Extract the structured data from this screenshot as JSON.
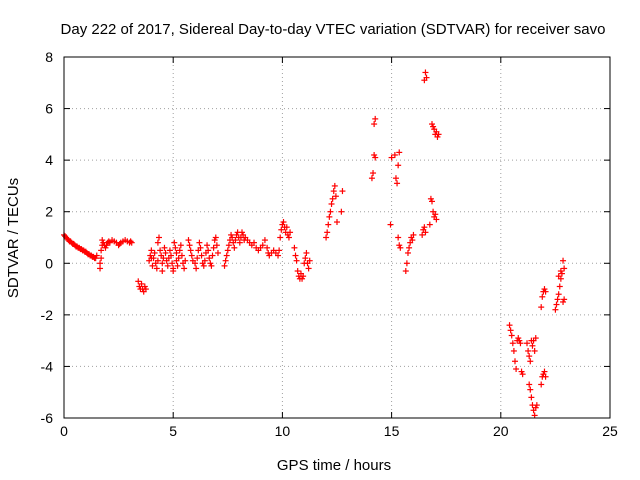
{
  "chart_data": {
    "type": "scatter",
    "title": "Day 222 of 2017, Sidereal Day-to-day VTEC variation (SDTVAR) for receiver savo",
    "xlabel": "GPS time / hours",
    "ylabel": "SDTVAR / TECUs",
    "xlim": [
      0,
      25
    ],
    "ylim": [
      -6,
      8
    ],
    "xticks": [
      0,
      5,
      10,
      15,
      20,
      25
    ],
    "yticks": [
      -6,
      -4,
      -2,
      0,
      2,
      4,
      6,
      8
    ],
    "xtick_labels": [
      "0",
      "5",
      "10",
      "15",
      "20",
      "25"
    ],
    "ytick_labels": [
      "-6",
      "-4",
      "-2",
      "0",
      "2",
      "4",
      "6",
      "8"
    ],
    "grid": true,
    "marker": "plus",
    "series": [
      {
        "name": "savo",
        "color": "#ff0000",
        "points": [
          [
            0.0,
            1.1
          ],
          [
            0.05,
            1.05
          ],
          [
            0.1,
            1.0
          ],
          [
            0.15,
            0.95
          ],
          [
            0.2,
            0.9
          ],
          [
            0.25,
            0.85
          ],
          [
            0.3,
            0.85
          ],
          [
            0.35,
            0.8
          ],
          [
            0.4,
            0.75
          ],
          [
            0.45,
            0.75
          ],
          [
            0.5,
            0.7
          ],
          [
            0.55,
            0.65
          ],
          [
            0.6,
            0.65
          ],
          [
            0.65,
            0.6
          ],
          [
            0.7,
            0.6
          ],
          [
            0.75,
            0.55
          ],
          [
            0.8,
            0.55
          ],
          [
            0.85,
            0.5
          ],
          [
            0.9,
            0.5
          ],
          [
            0.95,
            0.45
          ],
          [
            1.0,
            0.45
          ],
          [
            1.05,
            0.4
          ],
          [
            1.1,
            0.35
          ],
          [
            1.15,
            0.35
          ],
          [
            1.2,
            0.3
          ],
          [
            1.25,
            0.3
          ],
          [
            1.3,
            0.25
          ],
          [
            1.35,
            0.25
          ],
          [
            1.4,
            0.2
          ],
          [
            1.45,
            0.2
          ],
          [
            1.5,
            0.3
          ],
          [
            1.65,
            -0.2
          ],
          [
            1.65,
            0.0
          ],
          [
            1.7,
            0.2
          ],
          [
            1.7,
            0.5
          ],
          [
            1.75,
            0.7
          ],
          [
            1.75,
            0.9
          ],
          [
            1.8,
            0.8
          ],
          [
            1.85,
            0.7
          ],
          [
            1.9,
            0.6
          ],
          [
            1.95,
            0.7
          ],
          [
            2.0,
            0.8
          ],
          [
            2.05,
            0.85
          ],
          [
            2.1,
            0.8
          ],
          [
            2.2,
            0.9
          ],
          [
            2.3,
            0.85
          ],
          [
            2.4,
            0.8
          ],
          [
            2.5,
            0.7
          ],
          [
            2.55,
            0.75
          ],
          [
            2.6,
            0.8
          ],
          [
            2.7,
            0.85
          ],
          [
            2.8,
            0.9
          ],
          [
            2.9,
            0.85
          ],
          [
            3.0,
            0.8
          ],
          [
            3.05,
            0.85
          ],
          [
            3.1,
            0.8
          ],
          [
            3.4,
            -0.7
          ],
          [
            3.45,
            -0.9
          ],
          [
            3.5,
            -1.0
          ],
          [
            3.55,
            -0.8
          ],
          [
            3.6,
            -1.0
          ],
          [
            3.65,
            -1.1
          ],
          [
            3.7,
            -0.9
          ],
          [
            3.75,
            -1.0
          ],
          [
            3.9,
            0.1
          ],
          [
            3.95,
            0.3
          ],
          [
            4.0,
            0.5
          ],
          [
            4.0,
            0.2
          ],
          [
            4.05,
            -0.1
          ],
          [
            4.1,
            0.2
          ],
          [
            4.15,
            0.4
          ],
          [
            4.2,
            0.0
          ],
          [
            4.25,
            -0.2
          ],
          [
            4.3,
            0.1
          ],
          [
            4.3,
            0.8
          ],
          [
            4.35,
            1.0
          ],
          [
            4.4,
            0.5
          ],
          [
            4.45,
            0.3
          ],
          [
            4.5,
            0.0
          ],
          [
            4.5,
            -0.3
          ],
          [
            4.55,
            0.2
          ],
          [
            4.6,
            0.6
          ],
          [
            4.65,
            0.4
          ],
          [
            4.7,
            0.1
          ],
          [
            4.75,
            -0.1
          ],
          [
            4.8,
            0.2
          ],
          [
            4.85,
            0.5
          ],
          [
            4.9,
            0.3
          ],
          [
            4.95,
            0.0
          ],
          [
            5.0,
            -0.2
          ],
          [
            5.0,
            -0.3
          ],
          [
            5.05,
            0.8
          ],
          [
            5.1,
            0.6
          ],
          [
            5.15,
            0.4
          ],
          [
            5.15,
            0.1
          ],
          [
            5.2,
            -0.1
          ],
          [
            5.25,
            0.2
          ],
          [
            5.3,
            0.5
          ],
          [
            5.35,
            0.7
          ],
          [
            5.4,
            0.3
          ],
          [
            5.45,
            0.0
          ],
          [
            5.5,
            -0.2
          ],
          [
            5.55,
            0.1
          ],
          [
            5.7,
            0.9
          ],
          [
            5.75,
            0.7
          ],
          [
            5.8,
            0.5
          ],
          [
            5.85,
            0.3
          ],
          [
            5.9,
            0.1
          ],
          [
            6.0,
            0.0
          ],
          [
            6.05,
            -0.2
          ],
          [
            6.1,
            0.2
          ],
          [
            6.15,
            0.5
          ],
          [
            6.2,
            0.8
          ],
          [
            6.25,
            0.6
          ],
          [
            6.3,
            0.3
          ],
          [
            6.35,
            0.0
          ],
          [
            6.4,
            -0.1
          ],
          [
            6.45,
            0.1
          ],
          [
            6.5,
            0.4
          ],
          [
            6.55,
            0.7
          ],
          [
            6.6,
            0.5
          ],
          [
            6.65,
            0.2
          ],
          [
            6.7,
            0.0
          ],
          [
            6.75,
            -0.1
          ],
          [
            6.8,
            0.3
          ],
          [
            6.85,
            0.6
          ],
          [
            6.9,
            0.9
          ],
          [
            6.95,
            1.0
          ],
          [
            7.0,
            0.7
          ],
          [
            7.05,
            0.4
          ],
          [
            7.35,
            -0.1
          ],
          [
            7.4,
            0.1
          ],
          [
            7.45,
            0.3
          ],
          [
            7.5,
            0.5
          ],
          [
            7.55,
            0.7
          ],
          [
            7.6,
            0.9
          ],
          [
            7.65,
            1.1
          ],
          [
            7.7,
            1.0
          ],
          [
            7.75,
            0.8
          ],
          [
            7.8,
            0.6
          ],
          [
            7.85,
            0.9
          ],
          [
            7.9,
            1.1
          ],
          [
            7.95,
            1.2
          ],
          [
            8.0,
            1.0
          ],
          [
            8.05,
            0.8
          ],
          [
            8.1,
            1.0
          ],
          [
            8.15,
            1.2
          ],
          [
            8.2,
            1.1
          ],
          [
            8.25,
            0.9
          ],
          [
            8.3,
            1.0
          ],
          [
            8.4,
            0.9
          ],
          [
            8.5,
            0.8
          ],
          [
            8.6,
            0.7
          ],
          [
            8.7,
            0.8
          ],
          [
            8.8,
            0.6
          ],
          [
            8.9,
            0.5
          ],
          [
            9.0,
            0.6
          ],
          [
            9.1,
            0.7
          ],
          [
            9.2,
            0.9
          ],
          [
            9.3,
            0.6
          ],
          [
            9.35,
            0.4
          ],
          [
            9.4,
            0.3
          ],
          [
            9.5,
            0.4
          ],
          [
            9.6,
            0.5
          ],
          [
            9.7,
            0.4
          ],
          [
            9.8,
            0.3
          ],
          [
            9.85,
            0.5
          ],
          [
            9.9,
            1.0
          ],
          [
            9.95,
            1.3
          ],
          [
            10.0,
            1.5
          ],
          [
            10.05,
            1.6
          ],
          [
            10.1,
            1.4
          ],
          [
            10.15,
            1.2
          ],
          [
            10.2,
            1.4
          ],
          [
            10.25,
            1.1
          ],
          [
            10.3,
            1.0
          ],
          [
            10.35,
            1.2
          ],
          [
            10.55,
            0.6
          ],
          [
            10.6,
            0.3
          ],
          [
            10.65,
            0.1
          ],
          [
            10.7,
            -0.3
          ],
          [
            10.75,
            -0.5
          ],
          [
            10.8,
            -0.6
          ],
          [
            10.85,
            -0.4
          ],
          [
            10.9,
            -0.6
          ],
          [
            10.95,
            -0.5
          ],
          [
            11.0,
            0.0
          ],
          [
            11.05,
            0.2
          ],
          [
            11.1,
            0.4
          ],
          [
            11.15,
            0.0
          ],
          [
            11.2,
            -0.2
          ],
          [
            11.25,
            0.1
          ],
          [
            12.0,
            1.0
          ],
          [
            12.05,
            1.2
          ],
          [
            12.1,
            1.5
          ],
          [
            12.15,
            1.8
          ],
          [
            12.2,
            2.0
          ],
          [
            12.25,
            2.3
          ],
          [
            12.3,
            2.5
          ],
          [
            12.35,
            2.8
          ],
          [
            12.4,
            3.0
          ],
          [
            12.45,
            2.6
          ],
          [
            12.5,
            1.6
          ],
          [
            12.7,
            2.0
          ],
          [
            12.75,
            2.8
          ],
          [
            14.1,
            3.3
          ],
          [
            14.15,
            3.5
          ],
          [
            14.2,
            4.2
          ],
          [
            14.25,
            4.1
          ],
          [
            14.2,
            5.4
          ],
          [
            14.25,
            5.6
          ],
          [
            14.95,
            1.5
          ],
          [
            15.0,
            4.1
          ],
          [
            15.15,
            4.2
          ],
          [
            15.2,
            3.3
          ],
          [
            15.25,
            3.1
          ],
          [
            15.3,
            3.8
          ],
          [
            15.35,
            4.3
          ],
          [
            15.3,
            1.0
          ],
          [
            15.35,
            0.7
          ],
          [
            15.4,
            0.6
          ],
          [
            15.65,
            -0.3
          ],
          [
            15.7,
            0.0
          ],
          [
            15.75,
            0.4
          ],
          [
            15.8,
            0.6
          ],
          [
            15.85,
            0.8
          ],
          [
            15.9,
            1.0
          ],
          [
            15.95,
            0.9
          ],
          [
            16.0,
            1.1
          ],
          [
            16.4,
            1.1
          ],
          [
            16.45,
            1.3
          ],
          [
            16.5,
            1.4
          ],
          [
            16.55,
            1.2
          ],
          [
            16.5,
            7.1
          ],
          [
            16.55,
            7.4
          ],
          [
            16.6,
            7.2
          ],
          [
            16.75,
            1.5
          ],
          [
            16.8,
            2.5
          ],
          [
            16.85,
            2.4
          ],
          [
            16.9,
            2.0
          ],
          [
            16.95,
            1.8
          ],
          [
            17.0,
            1.9
          ],
          [
            17.05,
            1.7
          ],
          [
            16.85,
            5.4
          ],
          [
            16.9,
            5.3
          ],
          [
            16.95,
            5.2
          ],
          [
            17.0,
            5.0
          ],
          [
            17.05,
            5.1
          ],
          [
            17.1,
            4.9
          ],
          [
            17.15,
            5.0
          ],
          [
            20.4,
            -2.4
          ],
          [
            20.45,
            -2.6
          ],
          [
            20.5,
            -2.8
          ],
          [
            20.55,
            -3.1
          ],
          [
            20.6,
            -3.4
          ],
          [
            20.65,
            -3.8
          ],
          [
            20.7,
            -4.1
          ],
          [
            20.75,
            -3.0
          ],
          [
            20.8,
            -2.9
          ],
          [
            20.85,
            -3.0
          ],
          [
            20.9,
            -3.1
          ],
          [
            20.95,
            -4.2
          ],
          [
            21.0,
            -4.3
          ],
          [
            21.2,
            -3.1
          ],
          [
            21.25,
            -3.4
          ],
          [
            21.3,
            -3.6
          ],
          [
            21.35,
            -3.8
          ],
          [
            21.4,
            -3.0
          ],
          [
            21.45,
            -3.2
          ],
          [
            21.5,
            -3.0
          ],
          [
            21.55,
            -3.4
          ],
          [
            21.6,
            -2.9
          ],
          [
            21.3,
            -4.7
          ],
          [
            21.35,
            -4.9
          ],
          [
            21.4,
            -5.2
          ],
          [
            21.45,
            -5.5
          ],
          [
            21.5,
            -5.7
          ],
          [
            21.55,
            -5.9
          ],
          [
            21.6,
            -5.6
          ],
          [
            21.65,
            -5.5
          ],
          [
            21.85,
            -4.7
          ],
          [
            21.9,
            -4.4
          ],
          [
            21.95,
            -4.3
          ],
          [
            22.0,
            -4.2
          ],
          [
            22.05,
            -4.4
          ],
          [
            21.85,
            -1.7
          ],
          [
            21.9,
            -1.3
          ],
          [
            21.95,
            -1.1
          ],
          [
            22.0,
            -1.0
          ],
          [
            22.05,
            -1.1
          ],
          [
            22.5,
            -1.8
          ],
          [
            22.55,
            -1.6
          ],
          [
            22.6,
            -1.4
          ],
          [
            22.65,
            -1.2
          ],
          [
            22.7,
            -0.9
          ],
          [
            22.75,
            -0.6
          ],
          [
            22.8,
            -0.4
          ],
          [
            22.85,
            -1.5
          ],
          [
            22.9,
            -1.4
          ],
          [
            22.85,
            0.1
          ],
          [
            22.9,
            -0.2
          ],
          [
            22.75,
            -0.3
          ],
          [
            22.65,
            -0.5
          ]
        ]
      }
    ]
  }
}
